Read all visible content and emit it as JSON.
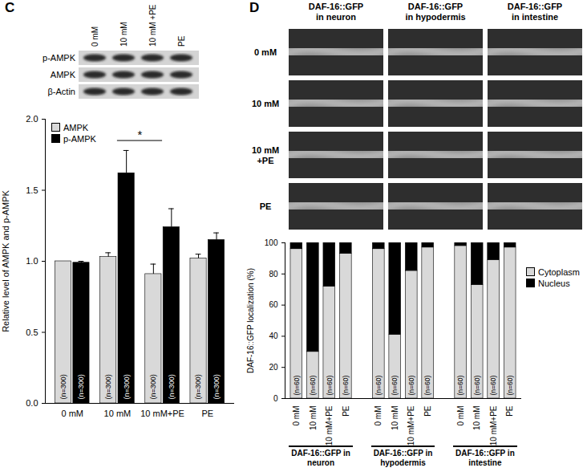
{
  "chart_data": [
    {
      "panel": "C",
      "type": "bar",
      "categories": [
        "0 mM",
        "10 mM",
        "10 mM+PE",
        "PE"
      ],
      "series": [
        {
          "name": "AMPK",
          "color": "#d9d9d9",
          "values": [
            1.0,
            1.03,
            0.91,
            1.02
          ],
          "errors": [
            0,
            0.03,
            0.07,
            0.03
          ],
          "bar_labels": [
            "(n=300)",
            "(n=300)",
            "(n=300)",
            "(n=300)"
          ]
        },
        {
          "name": "p-AMPK",
          "color": "#000000",
          "values": [
            0.99,
            1.62,
            1.24,
            1.15
          ],
          "errors": [
            0.01,
            0.16,
            0.13,
            0.05
          ],
          "bar_labels": [
            "(n=300)",
            "(n=300)",
            "(n=300)",
            "(n=300)"
          ]
        }
      ],
      "ylabel": "Relative level of AMPK and p-AMPK",
      "ylim": [
        0,
        2
      ],
      "yticks": [
        0,
        0.5,
        1,
        1.5,
        2
      ],
      "legend": "top-left",
      "annotations": [
        {
          "text": "*",
          "from": "10 mM",
          "to": "10 mM+PE",
          "y": 1.85
        }
      ],
      "blot": {
        "lanes": [
          "0 mM",
          "10 mM",
          "10 mM +PE",
          "PE"
        ],
        "rows": [
          "p-AMPK",
          "AMPK",
          "β-Actin"
        ]
      }
    },
    {
      "panel": "D",
      "type": "bar",
      "stacked": true,
      "categories": [
        "0 mM",
        "10 mM",
        "10 mM+PE",
        "PE"
      ],
      "groups": [
        "DAF-16::GFP in neuron",
        "DAF-16::GFP in hypodermis",
        "DAF-16::GFP in intestine"
      ],
      "series": [
        {
          "name": "Cytoplasm",
          "color": "#d9d9d9",
          "values": [
            [
              96,
              30,
              72,
              93
            ],
            [
              96,
              41,
              82,
              97
            ],
            [
              98,
              73,
              89,
              97
            ]
          ]
        },
        {
          "name": "Nucleus",
          "color": "#000000",
          "values": [
            [
              4,
              70,
              28,
              7
            ],
            [
              4,
              59,
              18,
              3
            ],
            [
              2,
              27,
              11,
              3
            ]
          ]
        }
      ],
      "bar_labels": [
        [
          "(n=60)",
          "(n=60)",
          "(n=60)",
          "(n=60)"
        ],
        [
          "(n=60)",
          "(n=60)",
          "(n=60)",
          "(n=60)"
        ],
        [
          "(n=60)",
          "(n=60)",
          "(n=60)",
          "(n=60)"
        ]
      ],
      "ylabel": "DAF-16::GFP localization (%)",
      "ylim": [
        0,
        100
      ],
      "yticks": [
        0,
        20,
        40,
        60,
        80,
        100
      ],
      "legend": "top-right",
      "micrographs": {
        "columns": [
          [
            "DAF-16::GFP",
            "in neuron"
          ],
          [
            "DAF-16::GFP",
            "in hypodermis"
          ],
          [
            "DAF-16::GFP",
            "in intestine"
          ]
        ],
        "rows": [
          [
            "0 mM"
          ],
          [
            "10 mM"
          ],
          [
            "10 mM",
            "+PE"
          ],
          [
            "PE"
          ]
        ]
      }
    }
  ]
}
